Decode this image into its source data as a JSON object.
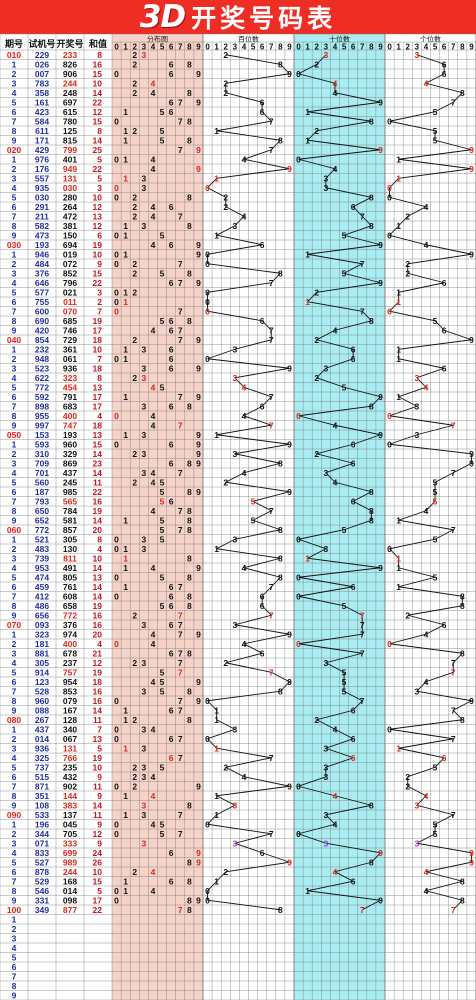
{
  "title": {
    "logo": "3D",
    "text": "开奖号码表"
  },
  "headers": {
    "issue": "期号",
    "test": "试机号",
    "draw": "开奖号",
    "sum": "和值",
    "dist": "分布图",
    "hundreds": "百位数",
    "tens": "十位数",
    "units": "个位数",
    "digits": [
      "0",
      "1",
      "2",
      "3",
      "4",
      "5",
      "6",
      "7",
      "8",
      "9"
    ]
  },
  "colors": {
    "banner": "#ee2d24",
    "dist_bg": "#f6d3c8",
    "tens_bg": "#a9ecf1",
    "issue_red": "#e6211a",
    "issue_blue": "#1d2fa0",
    "test_blue": "#1d2fa0",
    "accent": "#d8281b",
    "purple": "#b23ad8"
  },
  "rows": [
    {
      "issue": "010",
      "test": "229",
      "draw": "233",
      "sum": "8"
    },
    {
      "issue": "1",
      "test": "026",
      "draw": "826",
      "sum": "16"
    },
    {
      "issue": "2",
      "test": "007",
      "draw": "906",
      "sum": "15"
    },
    {
      "issue": "3",
      "test": "783",
      "draw": "244",
      "sum": "10"
    },
    {
      "issue": "4",
      "test": "358",
      "draw": "248",
      "sum": "14"
    },
    {
      "issue": "5",
      "test": "161",
      "draw": "697",
      "sum": "22"
    },
    {
      "issue": "6",
      "test": "423",
      "draw": "615",
      "sum": "12"
    },
    {
      "issue": "7",
      "test": "584",
      "draw": "780",
      "sum": "15"
    },
    {
      "issue": "8",
      "test": "611",
      "draw": "125",
      "sum": "8"
    },
    {
      "issue": "9",
      "test": "171",
      "draw": "815",
      "sum": "14"
    },
    {
      "issue": "020",
      "test": "429",
      "draw": "799",
      "sum": "25"
    },
    {
      "issue": "1",
      "test": "976",
      "draw": "401",
      "sum": "5"
    },
    {
      "issue": "2",
      "test": "176",
      "draw": "949",
      "sum": "22"
    },
    {
      "issue": "3",
      "test": "557",
      "draw": "131",
      "sum": "5"
    },
    {
      "issue": "4",
      "test": "935",
      "draw": "030",
      "sum": "3"
    },
    {
      "issue": "5",
      "test": "030",
      "draw": "280",
      "sum": "10"
    },
    {
      "issue": "6",
      "test": "291",
      "draw": "264",
      "sum": "12"
    },
    {
      "issue": "7",
      "test": "211",
      "draw": "472",
      "sum": "13"
    },
    {
      "issue": "8",
      "test": "582",
      "draw": "381",
      "sum": "12"
    },
    {
      "issue": "9",
      "test": "473",
      "draw": "150",
      "sum": "6"
    },
    {
      "issue": "030",
      "test": "193",
      "draw": "694",
      "sum": "19"
    },
    {
      "issue": "1",
      "test": "946",
      "draw": "019",
      "sum": "10"
    },
    {
      "issue": "2",
      "test": "484",
      "draw": "072",
      "sum": "9"
    },
    {
      "issue": "3",
      "test": "376",
      "draw": "852",
      "sum": "15"
    },
    {
      "issue": "4",
      "test": "646",
      "draw": "796",
      "sum": "22"
    },
    {
      "issue": "5",
      "test": "577",
      "draw": "021",
      "sum": "3"
    },
    {
      "issue": "6",
      "test": "755",
      "draw": "011",
      "sum": "2"
    },
    {
      "issue": "7",
      "test": "600",
      "draw": "070",
      "sum": "7"
    },
    {
      "issue": "8",
      "test": "690",
      "draw": "685",
      "sum": "19"
    },
    {
      "issue": "9",
      "test": "420",
      "draw": "746",
      "sum": "17"
    },
    {
      "issue": "040",
      "test": "854",
      "draw": "729",
      "sum": "18"
    },
    {
      "issue": "1",
      "test": "232",
      "draw": "361",
      "sum": "10"
    },
    {
      "issue": "2",
      "test": "948",
      "draw": "061",
      "sum": "7"
    },
    {
      "issue": "3",
      "test": "523",
      "draw": "936",
      "sum": "18"
    },
    {
      "issue": "4",
      "test": "622",
      "draw": "323",
      "sum": "8"
    },
    {
      "issue": "5",
      "test": "772",
      "draw": "454",
      "sum": "13"
    },
    {
      "issue": "6",
      "test": "592",
      "draw": "791",
      "sum": "17"
    },
    {
      "issue": "7",
      "test": "898",
      "draw": "683",
      "sum": "17"
    },
    {
      "issue": "8",
      "test": "955",
      "draw": "400",
      "sum": "4"
    },
    {
      "issue": "9",
      "test": "997",
      "draw": "747",
      "sum": "18"
    },
    {
      "issue": "050",
      "test": "153",
      "draw": "193",
      "sum": "13"
    },
    {
      "issue": "1",
      "test": "593",
      "draw": "960",
      "sum": "15"
    },
    {
      "issue": "2",
      "test": "310",
      "draw": "329",
      "sum": "14"
    },
    {
      "issue": "3",
      "test": "709",
      "draw": "869",
      "sum": "23"
    },
    {
      "issue": "4",
      "test": "701",
      "draw": "437",
      "sum": "14"
    },
    {
      "issue": "5",
      "test": "560",
      "draw": "245",
      "sum": "11"
    },
    {
      "issue": "6",
      "test": "187",
      "draw": "985",
      "sum": "22"
    },
    {
      "issue": "7",
      "test": "793",
      "draw": "565",
      "sum": "16"
    },
    {
      "issue": "8",
      "test": "650",
      "draw": "784",
      "sum": "19"
    },
    {
      "issue": "9",
      "test": "652",
      "draw": "581",
      "sum": "14"
    },
    {
      "issue": "060",
      "test": "772",
      "draw": "857",
      "sum": "20"
    },
    {
      "issue": "1",
      "test": "521",
      "draw": "305",
      "sum": "8"
    },
    {
      "issue": "2",
      "test": "483",
      "draw": "130",
      "sum": "4"
    },
    {
      "issue": "3",
      "test": "739",
      "draw": "811",
      "sum": "10"
    },
    {
      "issue": "4",
      "test": "953",
      "draw": "491",
      "sum": "14"
    },
    {
      "issue": "5",
      "test": "474",
      "draw": "805",
      "sum": "13"
    },
    {
      "issue": "6",
      "test": "459",
      "draw": "761",
      "sum": "14"
    },
    {
      "issue": "7",
      "test": "412",
      "draw": "608",
      "sum": "14"
    },
    {
      "issue": "8",
      "test": "486",
      "draw": "658",
      "sum": "19"
    },
    {
      "issue": "9",
      "test": "656",
      "draw": "772",
      "sum": "16"
    },
    {
      "issue": "070",
      "test": "093",
      "draw": "376",
      "sum": "16"
    },
    {
      "issue": "1",
      "test": "323",
      "draw": "974",
      "sum": "20"
    },
    {
      "issue": "2",
      "test": "181",
      "draw": "400",
      "sum": "4"
    },
    {
      "issue": "3",
      "test": "881",
      "draw": "678",
      "sum": "21"
    },
    {
      "issue": "4",
      "test": "305",
      "draw": "237",
      "sum": "12"
    },
    {
      "issue": "5",
      "test": "914",
      "draw": "757",
      "sum": "19"
    },
    {
      "issue": "6",
      "test": "123",
      "draw": "954",
      "sum": "18"
    },
    {
      "issue": "7",
      "test": "528",
      "draw": "853",
      "sum": "16"
    },
    {
      "issue": "8",
      "test": "960",
      "draw": "079",
      "sum": "16"
    },
    {
      "issue": "9",
      "test": "088",
      "draw": "167",
      "sum": "14"
    },
    {
      "issue": "080",
      "test": "267",
      "draw": "128",
      "sum": "11"
    },
    {
      "issue": "1",
      "test": "437",
      "draw": "340",
      "sum": "7"
    },
    {
      "issue": "2",
      "test": "014",
      "draw": "067",
      "sum": "13"
    },
    {
      "issue": "3",
      "test": "936",
      "draw": "131",
      "sum": "5"
    },
    {
      "issue": "4",
      "test": "325",
      "draw": "766",
      "sum": "19"
    },
    {
      "issue": "5",
      "test": "737",
      "draw": "235",
      "sum": "10"
    },
    {
      "issue": "6",
      "test": "515",
      "draw": "432",
      "sum": "9"
    },
    {
      "issue": "7",
      "test": "871",
      "draw": "902",
      "sum": "11"
    },
    {
      "issue": "8",
      "test": "351",
      "draw": "144",
      "sum": "9"
    },
    {
      "issue": "9",
      "test": "108",
      "draw": "383",
      "sum": "14"
    },
    {
      "issue": "090",
      "test": "533",
      "draw": "137",
      "sum": "11"
    },
    {
      "issue": "1",
      "test": "196",
      "draw": "045",
      "sum": "9"
    },
    {
      "issue": "2",
      "test": "344",
      "draw": "705",
      "sum": "12"
    },
    {
      "issue": "3",
      "test": "071",
      "draw": "333",
      "sum": "9"
    },
    {
      "issue": "4",
      "test": "833",
      "draw": "699",
      "sum": "24"
    },
    {
      "issue": "5",
      "test": "527",
      "draw": "989",
      "sum": "26"
    },
    {
      "issue": "6",
      "test": "878",
      "draw": "244",
      "sum": "10"
    },
    {
      "issue": "7",
      "test": "529",
      "draw": "168",
      "sum": "15"
    },
    {
      "issue": "8",
      "test": "546",
      "draw": "014",
      "sum": "5"
    },
    {
      "issue": "9",
      "test": "331",
      "draw": "098",
      "sum": "17"
    },
    {
      "issue": "100",
      "test": "349",
      "draw": "877",
      "sum": "22"
    },
    {
      "issue": "1",
      "test": "",
      "draw": "",
      "sum": ""
    },
    {
      "issue": "2",
      "test": "",
      "draw": "",
      "sum": ""
    },
    {
      "issue": "3",
      "test": "",
      "draw": "",
      "sum": ""
    },
    {
      "issue": "4",
      "test": "",
      "draw": "",
      "sum": ""
    },
    {
      "issue": "5",
      "test": "",
      "draw": "",
      "sum": ""
    },
    {
      "issue": "6",
      "test": "",
      "draw": "",
      "sum": ""
    },
    {
      "issue": "7",
      "test": "",
      "draw": "",
      "sum": ""
    },
    {
      "issue": "8",
      "test": "",
      "draw": "",
      "sum": ""
    },
    {
      "issue": "9",
      "test": "",
      "draw": "",
      "sum": ""
    }
  ]
}
